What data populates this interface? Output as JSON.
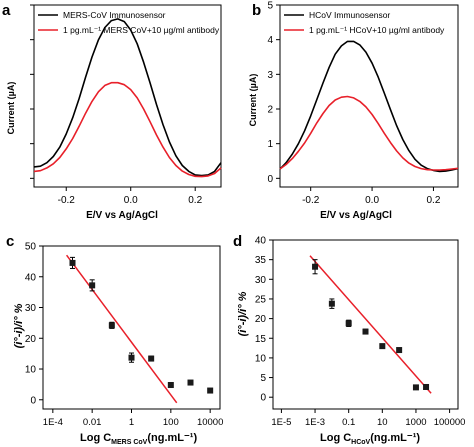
{
  "colors": {
    "black_series": "#000000",
    "red_series": "#e8202a",
    "fit_line": "#e8202a",
    "points": "#1a1a1a"
  },
  "chart_data": [
    {
      "panel": "a",
      "type": "line",
      "xlabel": "E/V vs Ag/AgCl",
      "ylabel": "Current (µA)",
      "xlim": [
        -0.3,
        0.28
      ],
      "ylim": [
        -0.25,
        5.0
      ],
      "xticks": [
        -0.2,
        0.0,
        0.2
      ],
      "xtick_labels": [
        "-0.2",
        "0.0",
        "0.2"
      ],
      "yticks": [
        0,
        1,
        2,
        3,
        4,
        5
      ],
      "yticks_labeled": true,
      "legend_position": "top-left",
      "series": [
        {
          "name": "MERS-CoV Immunosensor",
          "color": "#000000",
          "x": [
            -0.3,
            -0.28,
            -0.26,
            -0.24,
            -0.22,
            -0.2,
            -0.18,
            -0.16,
            -0.14,
            -0.12,
            -0.1,
            -0.08,
            -0.06,
            -0.04,
            -0.02,
            0.0,
            0.02,
            0.04,
            0.06,
            0.08,
            0.1,
            0.12,
            0.14,
            0.16,
            0.18,
            0.2,
            0.22,
            0.24,
            0.26,
            0.28
          ],
          "values": [
            0.33,
            0.35,
            0.45,
            0.63,
            0.9,
            1.28,
            1.75,
            2.3,
            2.92,
            3.5,
            4.0,
            4.35,
            4.55,
            4.6,
            4.52,
            4.28,
            3.88,
            3.35,
            2.75,
            2.13,
            1.55,
            1.05,
            0.65,
            0.37,
            0.2,
            0.1,
            0.08,
            0.1,
            0.2,
            0.45
          ]
        },
        {
          "name": "1 pg.mL⁻¹ MERS CoV+10 µg/ml antibody",
          "color": "#e8202a",
          "x": [
            -0.3,
            -0.28,
            -0.26,
            -0.24,
            -0.22,
            -0.2,
            -0.18,
            -0.16,
            -0.14,
            -0.12,
            -0.1,
            -0.08,
            -0.06,
            -0.04,
            -0.02,
            0.0,
            0.02,
            0.04,
            0.06,
            0.08,
            0.1,
            0.12,
            0.14,
            0.16,
            0.18,
            0.2,
            0.22,
            0.24,
            0.26,
            0.28
          ],
          "values": [
            0.2,
            0.22,
            0.3,
            0.42,
            0.6,
            0.85,
            1.15,
            1.5,
            1.88,
            2.22,
            2.5,
            2.68,
            2.76,
            2.76,
            2.7,
            2.56,
            2.32,
            2.0,
            1.63,
            1.25,
            0.9,
            0.6,
            0.37,
            0.21,
            0.11,
            0.06,
            0.05,
            0.07,
            0.14,
            0.3
          ]
        }
      ]
    },
    {
      "panel": "b",
      "type": "line",
      "xlabel": "E/V vs Ag/AgCl",
      "ylabel": "Current (µA)",
      "xlim": [
        -0.3,
        0.28
      ],
      "ylim": [
        -0.25,
        5.0
      ],
      "xticks": [
        -0.2,
        0.0,
        0.2
      ],
      "xtick_labels": [
        "-0.2",
        "0.0",
        "0.2"
      ],
      "yticks": [
        0,
        1,
        2,
        3,
        4,
        5
      ],
      "ytick_labels": [
        "0",
        "1",
        "2",
        "3",
        "4",
        "5"
      ],
      "legend_position": "top-left",
      "series": [
        {
          "name": "HCoV Immunosensor",
          "color": "#000000",
          "x": [
            -0.3,
            -0.28,
            -0.26,
            -0.24,
            -0.22,
            -0.2,
            -0.18,
            -0.16,
            -0.14,
            -0.12,
            -0.1,
            -0.08,
            -0.06,
            -0.04,
            -0.02,
            0.0,
            0.02,
            0.04,
            0.06,
            0.08,
            0.1,
            0.12,
            0.14,
            0.16,
            0.18,
            0.2,
            0.22,
            0.24,
            0.26,
            0.28
          ],
          "values": [
            0.27,
            0.45,
            0.7,
            1.0,
            1.37,
            1.8,
            2.27,
            2.75,
            3.2,
            3.58,
            3.82,
            3.95,
            3.95,
            3.85,
            3.64,
            3.32,
            2.92,
            2.46,
            1.98,
            1.52,
            1.12,
            0.8,
            0.55,
            0.38,
            0.28,
            0.23,
            0.2,
            0.21,
            0.24,
            0.28
          ]
        },
        {
          "name": "1 pg.mL⁻¹ HCoV+10 µg/ml antibody",
          "color": "#e8202a",
          "x": [
            -0.3,
            -0.28,
            -0.26,
            -0.24,
            -0.22,
            -0.2,
            -0.18,
            -0.16,
            -0.14,
            -0.12,
            -0.1,
            -0.08,
            -0.06,
            -0.04,
            -0.02,
            0.0,
            0.02,
            0.04,
            0.06,
            0.08,
            0.1,
            0.12,
            0.14,
            0.16,
            0.18,
            0.2,
            0.22,
            0.24,
            0.26,
            0.28
          ],
          "values": [
            0.27,
            0.4,
            0.57,
            0.78,
            1.02,
            1.3,
            1.6,
            1.87,
            2.1,
            2.26,
            2.34,
            2.36,
            2.32,
            2.22,
            2.06,
            1.84,
            1.58,
            1.3,
            1.03,
            0.79,
            0.59,
            0.44,
            0.34,
            0.28,
            0.25,
            0.24,
            0.24,
            0.25,
            0.27,
            0.29
          ]
        }
      ]
    },
    {
      "panel": "c",
      "type": "scatter",
      "xlabel_main": "Log C",
      "xlabel_sub": "MERS CoV",
      "xlabel_unit": "(ng.mL⁻¹)",
      "ylabel_main": "(i°-i)/i° %",
      "xscale": "log",
      "xlim_log10": [
        -4.5,
        4.5
      ],
      "ylim": [
        -3,
        50
      ],
      "xticks_log10": [
        -4,
        -2,
        0,
        2,
        4
      ],
      "xtick_labels": [
        "1E-4",
        "0.01",
        "1",
        "100",
        "10000"
      ],
      "yticks": [
        0,
        10,
        20,
        30,
        40,
        50
      ],
      "ytick_labels": [
        "0",
        "10",
        "20",
        "30",
        "40",
        "50"
      ],
      "points": {
        "x_log10": [
          -3.0,
          -2.0,
          -1.0,
          0.0,
          1.0,
          2.0,
          3.0,
          4.0
        ],
        "y": [
          44.5,
          37.2,
          24.2,
          13.7,
          13.4,
          4.8,
          5.6,
          3.0
        ],
        "err": [
          1.8,
          1.8,
          1.0,
          1.5,
          0.8,
          0.8,
          0.6,
          0.6
        ]
      },
      "fit_line": {
        "x_log10": [
          -3.3,
          2.3
        ],
        "y": [
          47.0,
          -1.0
        ]
      }
    },
    {
      "panel": "d",
      "type": "scatter",
      "xlabel_main": "Log C",
      "xlabel_sub": "HCoV",
      "xlabel_unit": "(ng.mL⁻¹)",
      "ylabel_main": "(i°-i)/i° %",
      "xscale": "log",
      "xlim_log10": [
        -5.5,
        5.5
      ],
      "ylim": [
        -3,
        40
      ],
      "xticks_log10": [
        -5,
        -3,
        -1,
        1,
        3,
        5
      ],
      "xtick_labels": [
        "1E-5",
        "1E-3",
        "0.1",
        "10",
        "1000",
        "100000"
      ],
      "yticks": [
        0,
        5,
        10,
        15,
        20,
        25,
        30,
        35,
        40
      ],
      "ytick_labels": [
        "0",
        "5",
        "10",
        "15",
        "20",
        "25",
        "30",
        "35",
        "40"
      ],
      "points": {
        "x_log10": [
          -3.0,
          -2.0,
          -1.0,
          0.0,
          1.0,
          2.0,
          3.0,
          3.6
        ],
        "y": [
          33.2,
          23.8,
          18.8,
          16.7,
          13.0,
          12.0,
          2.5,
          2.6
        ],
        "err": [
          1.8,
          1.2,
          0.8,
          0.6,
          0.5,
          0.5,
          0.4,
          0.4
        ]
      },
      "fit_line": {
        "x_log10": [
          -3.3,
          3.9
        ],
        "y": [
          36.0,
          1.0
        ]
      }
    }
  ],
  "panels": {
    "a": {
      "letter": "a",
      "xlabel": "E/V vs Ag/AgCl",
      "ylabel": "Current (µA)"
    },
    "b": {
      "letter": "b",
      "xlabel": "E/V vs Ag/AgCl",
      "ylabel": "Current (µA)"
    },
    "c": {
      "letter": "c",
      "xlabel_main": "Log C",
      "xlabel_sub": "MERS CoV",
      "xlabel_unit": "(ng.mL⁻¹)",
      "ylabel": "(i°-i)/i° %"
    },
    "d": {
      "letter": "d",
      "xlabel_main": "Log C",
      "xlabel_sub": "HCoV",
      "xlabel_unit": "(ng.mL⁻¹)",
      "ylabel": "(i°-i)/i° %"
    }
  }
}
